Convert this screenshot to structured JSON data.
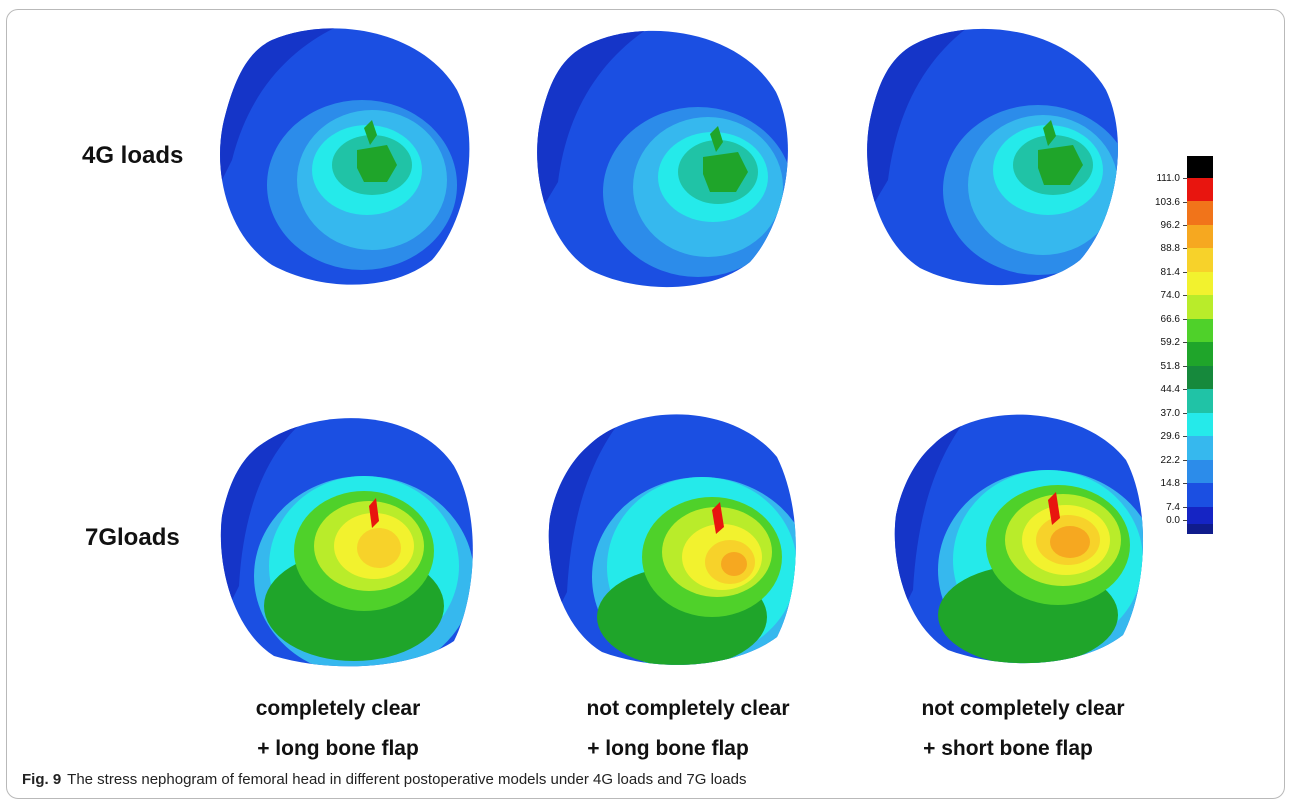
{
  "figure": {
    "row_labels": [
      "4G loads",
      "7Gloads"
    ],
    "columns": [
      {
        "line1": "completely clear",
        "line2": "+ long bone flap"
      },
      {
        "line1": "not completely clear",
        "line2": "+ long bone flap"
      },
      {
        "line1": "not completely clear",
        "line2": "+ short bone flap"
      }
    ],
    "colorbar": {
      "ticks": [
        "111.0",
        "103.6",
        "96.2",
        "88.8",
        "81.4",
        "74.0",
        "66.6",
        "59.2",
        "51.8",
        "44.4",
        "37.0",
        "29.6",
        "22.2",
        "14.8",
        "7.4",
        "0.0"
      ],
      "colors": [
        "#000000",
        "#e8150f",
        "#f1741a",
        "#f6a820",
        "#f7d22a",
        "#f2f22e",
        "#b9ec2a",
        "#4fd12a",
        "#1fa52a",
        "#16893c",
        "#20c3a6",
        "#25eaea",
        "#36b8ee",
        "#2c8cea",
        "#1b4fe2",
        "#1524c4",
        "#101c8c"
      ]
    },
    "caption": {
      "label": "Fig. 9",
      "text": "The stress nephogram of femoral head in different postoperative models under 4G loads and 7G loads"
    },
    "heads": [
      {
        "row": 0,
        "col": 0,
        "peak": "green"
      },
      {
        "row": 0,
        "col": 1,
        "peak": "green"
      },
      {
        "row": 0,
        "col": 2,
        "peak": "green"
      },
      {
        "row": 1,
        "col": 0,
        "peak": "yellow"
      },
      {
        "row": 1,
        "col": 1,
        "peak": "orange"
      },
      {
        "row": 1,
        "col": 2,
        "peak": "orange"
      }
    ]
  }
}
